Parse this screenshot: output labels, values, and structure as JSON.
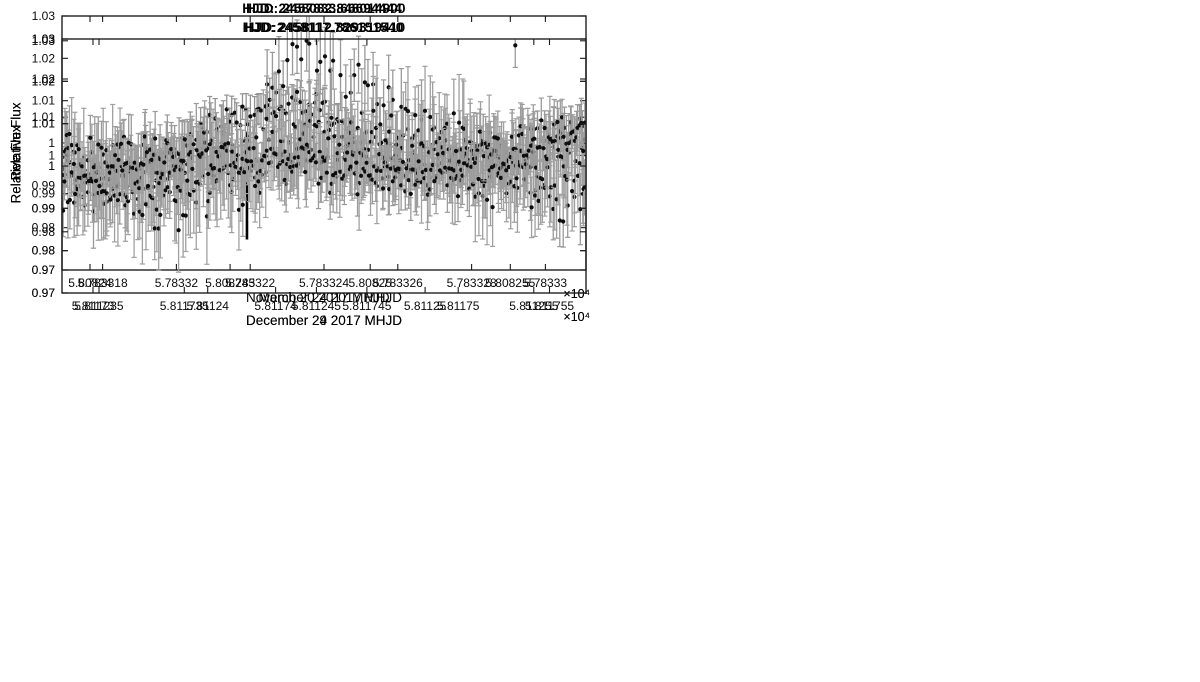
{
  "figure": {
    "background": "#ffffff",
    "description": "Four-panel transit light curve figure: Relative Flux versus MHJD with error bars"
  },
  "chart_data": [
    {
      "type": "scatter_errorbar",
      "panel": "top-left",
      "title": "HJD: 2457833.66694444",
      "xlabel": "March 20 2017 MHJD",
      "ylabel": "Relative Flux",
      "axis_multiplier_label": "×10⁴",
      "grid": false,
      "xlim": [
        5.7833169,
        5.7833311
      ],
      "ylim": [
        0.97,
        1.03
      ],
      "xtick_values": [
        5.783318,
        5.78332,
        5.783322,
        5.783324,
        5.783326,
        5.783328,
        5.78333
      ],
      "xtick_labels": [
        "5.783318",
        "5.78332",
        "5.783322",
        "5.783324",
        "5.783326",
        "5.783328",
        "5.78333"
      ],
      "ytick_values": [
        0.97,
        0.98,
        0.99,
        1,
        1.01,
        1.02,
        1.03
      ],
      "ytick_labels": [
        "0.97",
        "0.98",
        "0.99",
        "1",
        "1.01",
        "1.02",
        "1.03"
      ],
      "point_color": "#0d0d0d",
      "errorbar_color": "#949494",
      "series": {
        "n": 190,
        "seed": 7,
        "scatter_sigma": 0.003,
        "err_half_length": 0.004,
        "err_jitter": 0.0015,
        "segments": [
          [
            0,
            1,
            1
          ]
        ],
        "trend": [
          [
            0,
            0.9915
          ],
          [
            0.08,
            0.992
          ],
          [
            0.15,
            0.9952
          ],
          [
            0.22,
            0.999
          ],
          [
            0.3,
            1.004
          ],
          [
            0.38,
            1.0085
          ],
          [
            0.46,
            1.0092
          ],
          [
            0.52,
            1.006
          ],
          [
            0.58,
            1.0
          ],
          [
            0.63,
            0.9952
          ],
          [
            0.68,
            0.9945
          ],
          [
            0.73,
            0.9965
          ],
          [
            0.78,
            0.9992
          ],
          [
            0.83,
            0.9982
          ],
          [
            0.88,
            0.9995
          ],
          [
            0.93,
            1.0025
          ],
          [
            1,
            1.005
          ]
        ]
      }
    },
    {
      "type": "scatter_errorbar",
      "panel": "top-right",
      "title": "HJD: 2458082.848014900",
      "xlabel": "November 24 2017 MHJD",
      "ylabel": "Relative Flux",
      "axis_multiplier_label": "×10⁴",
      "grid": false,
      "xlim": [
        5.808239,
        5.8082577
      ],
      "ylim": [
        0.97,
        1.0365
      ],
      "xtick_values": [
        5.80824,
        5.808245,
        5.80825,
        5.808255
      ],
      "xtick_labels": [
        "5.80824",
        "5.808245",
        "5.80825",
        "5.808255"
      ],
      "ytick_values": [
        0.97,
        0.98,
        0.99,
        1,
        1.01,
        1.02,
        1.03
      ],
      "ytick_labels": [
        "0.97",
        "0.98",
        "0.99",
        "1",
        "1.01",
        "1.02",
        "1.03"
      ],
      "point_color": "#0d0d0d",
      "errorbar_color": "#9a9a9a",
      "annotation": {
        "type": "up-arrow",
        "fx": 0.353,
        "y_from": 0.978,
        "y_to": 1.0065
      },
      "series": {
        "n": 115,
        "seed": 11,
        "scatter_sigma": 0.0045,
        "err_half_length": 0.0085,
        "err_jitter": 0.002,
        "segments": [
          [
            0,
            0.327,
            0.42
          ],
          [
            0.388,
            1,
            0.58
          ]
        ],
        "trend": [
          [
            0,
            0.988
          ],
          [
            0.07,
            0.9895
          ],
          [
            0.14,
            0.9925
          ],
          [
            0.21,
            0.997
          ],
          [
            0.27,
            1.002
          ],
          [
            0.327,
            1.0075
          ],
          [
            0.388,
            1.0195
          ],
          [
            0.44,
            1.0255
          ],
          [
            0.5,
            1.024
          ],
          [
            0.56,
            1.018
          ],
          [
            0.62,
            1.012
          ],
          [
            0.68,
            1.0065
          ],
          [
            0.74,
            1.0015
          ],
          [
            0.8,
            0.9995
          ],
          [
            0.86,
            0.998
          ],
          [
            0.91,
            0.9915
          ],
          [
            0.95,
            0.9855
          ],
          [
            1,
            0.9845
          ]
        ]
      }
    },
    {
      "type": "scatter_errorbar",
      "panel": "bottom-left",
      "title": "HJD: 2458112.829319410",
      "xlabel": "December 24 2017 MHJD",
      "ylabel": "Relative Flux",
      "axis_multiplier_label": "×10⁴",
      "grid": false,
      "xlim": [
        5.8112333,
        5.8112574
      ],
      "ylim": [
        0.97,
        1.03
      ],
      "xtick_values": [
        5.811235,
        5.81124,
        5.811245,
        5.81125,
        5.811255
      ],
      "xtick_labels": [
        "5.811235",
        "5.81124",
        "5.811245",
        "5.81125",
        "5.811255"
      ],
      "ytick_values": [
        0.97,
        0.98,
        0.99,
        1,
        1.01,
        1.02,
        1.03
      ],
      "ytick_labels": [
        "0.97",
        "0.98",
        "0.99",
        "1",
        "1.01",
        "1.02",
        "1.03"
      ],
      "point_color": "#0d0d0d",
      "errorbar_color": "#a0a0a0",
      "series": {
        "n": 295,
        "seed": 23,
        "scatter_sigma": 0.0075,
        "err_half_length": 0.009,
        "err_jitter": 0.0028,
        "segments": [
          [
            0,
            1,
            1
          ]
        ],
        "trend": [
          [
            0,
            1.003
          ],
          [
            0.05,
            0.999
          ],
          [
            0.11,
            0.9955
          ],
          [
            0.18,
            0.9935
          ],
          [
            0.26,
            0.9955
          ],
          [
            0.34,
            1.0
          ],
          [
            0.42,
            1.0035
          ],
          [
            0.5,
            1.0045
          ],
          [
            0.58,
            1.0035
          ],
          [
            0.66,
            1.0045
          ],
          [
            0.74,
            1.0035
          ],
          [
            0.82,
            1.0005
          ],
          [
            0.88,
            0.998
          ],
          [
            0.94,
            0.9985
          ],
          [
            1,
            0.9975
          ]
        ]
      }
    },
    {
      "type": "scatter_errorbar",
      "panel": "bottom-right",
      "title": "HJD:2458117.786151540",
      "xlabel": "December 29 2017 MHJD",
      "ylabel": "Relative Flux",
      "axis_multiplier_label": "×10⁴",
      "grid": false,
      "xlim": [
        5.8117283,
        5.811757
      ],
      "ylim": [
        0.97,
        1.03
      ],
      "xtick_values": [
        5.81173,
        5.811735,
        5.81174,
        5.811745,
        5.81175,
        5.811755
      ],
      "xtick_labels": [
        "5.81173",
        "5.811735",
        "5.81174",
        "5.811745",
        "5.81175",
        "5.811755"
      ],
      "ytick_values": [
        0.97,
        0.98,
        0.99,
        1,
        1.01,
        1.02,
        1.03
      ],
      "ytick_labels": [
        "0.97",
        "0.98",
        "0.99",
        "1",
        "1.01",
        "1.02",
        "1.03"
      ],
      "point_color": "#0d0d0d",
      "errorbar_color": "#9b9b9b",
      "outliers": [
        {
          "fx": 0.865,
          "y": 1.0285,
          "err_half_length": 0.0052
        }
      ],
      "series": {
        "n": 300,
        "seed": 42,
        "scatter_sigma": 0.0053,
        "err_half_length": 0.0055,
        "err_jitter": 0.0015,
        "segments": [
          [
            0,
            1,
            1
          ]
        ],
        "trend": [
          [
            0,
            1.0005
          ],
          [
            0.1,
            1.0012
          ],
          [
            0.2,
            1.0002
          ],
          [
            0.3,
            1.0012
          ],
          [
            0.4,
            1.0022
          ],
          [
            0.5,
            1.0002
          ],
          [
            0.6,
            0.9985
          ],
          [
            0.7,
            0.9988
          ],
          [
            0.8,
            1.0005
          ],
          [
            0.88,
            1.0035
          ],
          [
            0.94,
            1.005
          ],
          [
            1,
            1.0068
          ]
        ]
      }
    }
  ]
}
